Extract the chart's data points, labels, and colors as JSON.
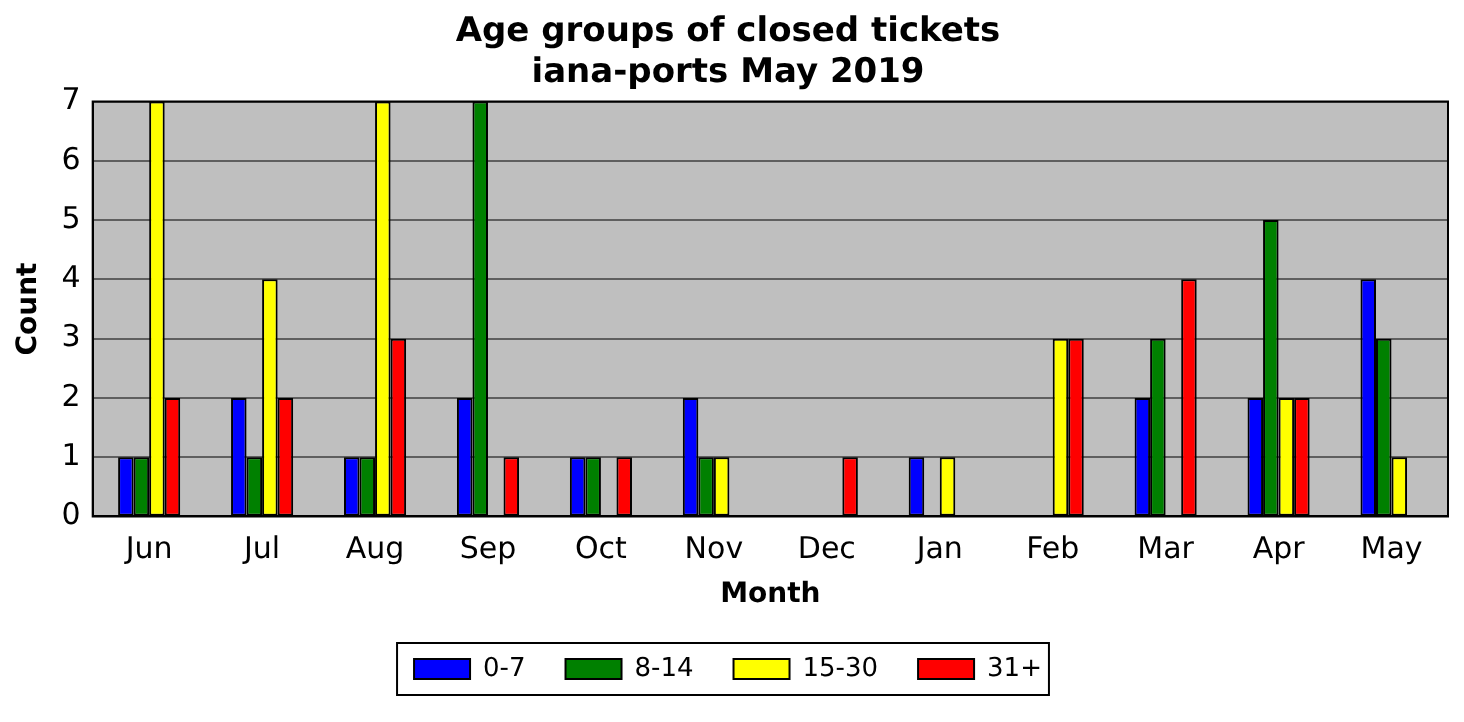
{
  "chart_data": {
    "type": "bar",
    "title": "Age groups of closed tickets\niana-ports May 2019",
    "xlabel": "Month",
    "ylabel": "Count",
    "categories": [
      "Jun",
      "Jul",
      "Aug",
      "Sep",
      "Oct",
      "Nov",
      "Dec",
      "Jan",
      "Feb",
      "Mar",
      "Apr",
      "May"
    ],
    "series": [
      {
        "name": "0-7",
        "color": "#0000ff",
        "values": [
          1,
          2,
          1,
          2,
          1,
          2,
          0,
          1,
          0,
          2,
          2,
          4
        ]
      },
      {
        "name": "8-14",
        "color": "#008000",
        "values": [
          1,
          1,
          1,
          7,
          1,
          1,
          0,
          0,
          0,
          3,
          5,
          3
        ]
      },
      {
        "name": "15-30",
        "color": "#ffff00",
        "values": [
          7,
          4,
          7,
          0,
          0,
          1,
          0,
          1,
          3,
          0,
          2,
          1
        ]
      },
      {
        "name": "31+",
        "color": "#ff0000",
        "values": [
          2,
          2,
          3,
          1,
          1,
          0,
          1,
          0,
          3,
          4,
          2,
          0
        ]
      }
    ],
    "ylim": [
      0,
      7
    ],
    "yticks": [
      0,
      1,
      2,
      3,
      4,
      5,
      6,
      7
    ],
    "grid": "y",
    "legend": "bottom"
  }
}
